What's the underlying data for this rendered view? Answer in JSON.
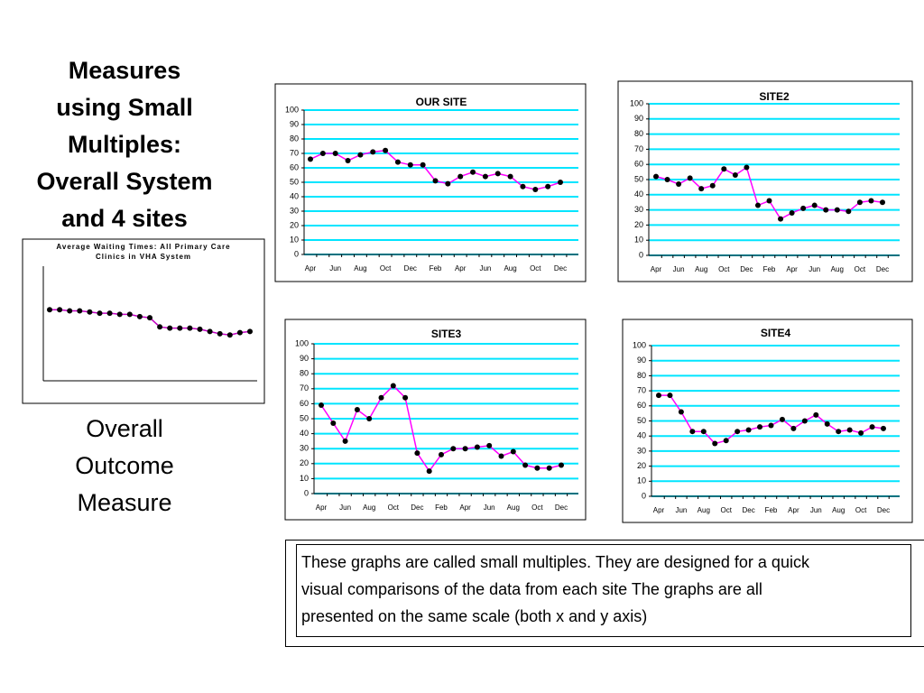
{
  "slide": {
    "title_lines": [
      "Measures",
      "using Small",
      "Multiples:",
      "Overall System",
      "and 4 sites"
    ],
    "caption_lines": [
      "Overall",
      "Outcome",
      "Measure"
    ],
    "note_lines": [
      "These graphs are called small multiples.  They are designed for a quick",
      "visual comparisons of the data from each site The graphs are all",
      "presented on the same   scale (both x and y axis)"
    ]
  },
  "chart_data": [
    {
      "type": "line",
      "title": "Average Waiting Times: All Primary Care Clinics in VHA System",
      "values": [
        62,
        62,
        61,
        61,
        60,
        59,
        59,
        58,
        58,
        56,
        55,
        47,
        46,
        46,
        46,
        45,
        43,
        41,
        40,
        42,
        43
      ],
      "color": "#c000c0",
      "marker_color": "#000000",
      "ylim": [
        0,
        100
      ],
      "grid": false
    },
    {
      "type": "line",
      "title": "OUR SITE",
      "categories": [
        "Apr",
        null,
        "Jun",
        null,
        "Aug",
        null,
        "Oct",
        null,
        "Dec",
        null,
        "Feb",
        null,
        "Apr",
        null,
        "Jun",
        null,
        "Aug",
        null,
        "Oct",
        null,
        "Dec"
      ],
      "values": [
        66,
        70,
        70,
        65,
        69,
        71,
        72,
        64,
        62,
        62,
        51,
        49,
        54,
        57,
        54,
        56,
        54,
        47,
        45,
        47,
        50
      ],
      "color": "#ff00ff",
      "marker_color": "#000000",
      "grid_color": "#00e5ff",
      "ylim": [
        0,
        100
      ],
      "yticks": [
        0,
        10,
        20,
        30,
        40,
        50,
        60,
        70,
        80,
        90,
        100
      ],
      "grid": true
    },
    {
      "type": "line",
      "title": "SITE2",
      "categories": [
        "Apr",
        null,
        "Jun",
        null,
        "Aug",
        null,
        "Oct",
        null,
        "Dec",
        null,
        "Feb",
        null,
        "Apr",
        null,
        "Jun",
        null,
        "Aug",
        null,
        "Oct",
        null,
        "Dec"
      ],
      "values": [
        52,
        50,
        47,
        51,
        44,
        46,
        57,
        53,
        58,
        33,
        36,
        24,
        28,
        31,
        33,
        30,
        30,
        29,
        35,
        36,
        35
      ],
      "color": "#ff00ff",
      "marker_color": "#000000",
      "grid_color": "#00e5ff",
      "ylim": [
        0,
        100
      ],
      "yticks": [
        0,
        10,
        20,
        30,
        40,
        50,
        60,
        70,
        80,
        90,
        100
      ],
      "grid": true
    },
    {
      "type": "line",
      "title": "SITE3",
      "categories": [
        "Apr",
        null,
        "Jun",
        null,
        "Aug",
        null,
        "Oct",
        null,
        "Dec",
        null,
        "Feb",
        null,
        "Apr",
        null,
        "Jun",
        null,
        "Aug",
        null,
        "Oct",
        null,
        "Dec"
      ],
      "values": [
        59,
        47,
        35,
        56,
        50,
        64,
        72,
        64,
        27,
        15,
        26,
        30,
        30,
        31,
        32,
        25,
        28,
        19,
        17,
        17,
        19
      ],
      "color": "#ff00ff",
      "marker_color": "#000000",
      "grid_color": "#00e5ff",
      "ylim": [
        0,
        100
      ],
      "yticks": [
        0,
        10,
        20,
        30,
        40,
        50,
        60,
        70,
        80,
        90,
        100
      ],
      "grid": true
    },
    {
      "type": "line",
      "title": "SITE4",
      "categories": [
        "Apr",
        null,
        "Jun",
        null,
        "Aug",
        null,
        "Oct",
        null,
        "Dec",
        null,
        "Feb",
        null,
        "Apr",
        null,
        "Jun",
        null,
        "Aug",
        null,
        "Oct",
        null,
        "Dec"
      ],
      "values": [
        67,
        67,
        56,
        43,
        43,
        35,
        37,
        43,
        44,
        46,
        47,
        51,
        45,
        50,
        54,
        48,
        43,
        44,
        42,
        46,
        45
      ],
      "color": "#ff00ff",
      "marker_color": "#000000",
      "grid_color": "#00e5ff",
      "ylim": [
        0,
        100
      ],
      "yticks": [
        0,
        10,
        20,
        30,
        40,
        50,
        60,
        70,
        80,
        90,
        100
      ],
      "grid": true
    }
  ]
}
